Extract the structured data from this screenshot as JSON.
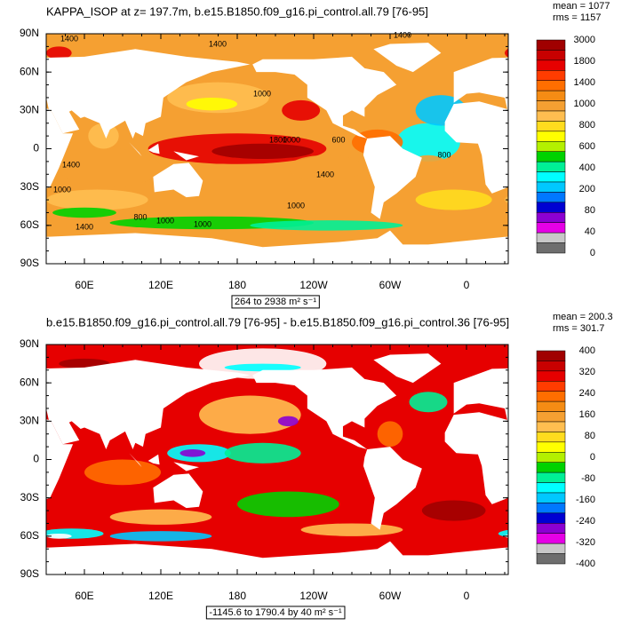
{
  "panels": [
    {
      "title": "KAPPA_ISOP at z= 197.7m, b.e15.B1850.f09_g16.pi_control.all.79 [76-95]",
      "stats": [
        "mean = 1077",
        "rms = 1157"
      ],
      "lat_labels": [
        "90N",
        "60N",
        "30N",
        "0",
        "30S",
        "60S",
        "90S"
      ],
      "lon_labels": [
        "60E",
        "120E",
        "180",
        "120W",
        "60W",
        "0"
      ],
      "range_label": "264 to 2938 m² s⁻¹",
      "colorbar_labels": [
        "3000",
        "1800",
        "1400",
        "1000",
        "800",
        "600",
        "400",
        "200",
        "80",
        "40",
        "0"
      ],
      "colorbar_colors": [
        "#a00000",
        "#c80000",
        "#e60000",
        "#ff3c00",
        "#ff6e00",
        "#f58c14",
        "#f5a032",
        "#ffbe50",
        "#ffdc1e",
        "#ffff00",
        "#b4f000",
        "#00d200",
        "#00f096",
        "#00ffff",
        "#00c8ff",
        "#0078ff",
        "#0000d2",
        "#8c00d2",
        "#e600e6",
        "#c8c8c8",
        "#6e6e6e"
      ],
      "contour_labels": [
        "1400",
        "1400",
        "1400",
        "1000",
        "1800",
        "1000",
        "600",
        "1400",
        "1000",
        "1400",
        "1000",
        "800",
        "1000",
        "1000",
        "1400",
        "800"
      ]
    },
    {
      "title": "b.e15.B1850.f09_g16.pi_control.all.79 [76-95] - b.e15.B1850.f09_g16.pi_control.36 [76-95]",
      "stats": [
        "mean = 200.3",
        "rms = 301.7"
      ],
      "lat_labels": [
        "90N",
        "60N",
        "30N",
        "0",
        "30S",
        "60S",
        "90S"
      ],
      "lon_labels": [
        "60E",
        "120E",
        "180",
        "120W",
        "60W",
        "0"
      ],
      "range_label": "-1145.6 to 1790.4 by 40 m² s⁻¹",
      "colorbar_labels": [
        "400",
        "320",
        "240",
        "160",
        "80",
        "0",
        "-80",
        "-160",
        "-240",
        "-320",
        "-400"
      ],
      "colorbar_colors": [
        "#a00000",
        "#c80000",
        "#e60000",
        "#ff3c00",
        "#ff6e00",
        "#f58c14",
        "#f5a032",
        "#ffbe50",
        "#ffdc1e",
        "#ffff00",
        "#b4f000",
        "#00d200",
        "#00f096",
        "#00ffff",
        "#00c8ff",
        "#0078ff",
        "#0000d2",
        "#8c00d2",
        "#e600e6",
        "#c8c8c8",
        "#6e6e6e"
      ],
      "contour_labels": []
    }
  ]
}
